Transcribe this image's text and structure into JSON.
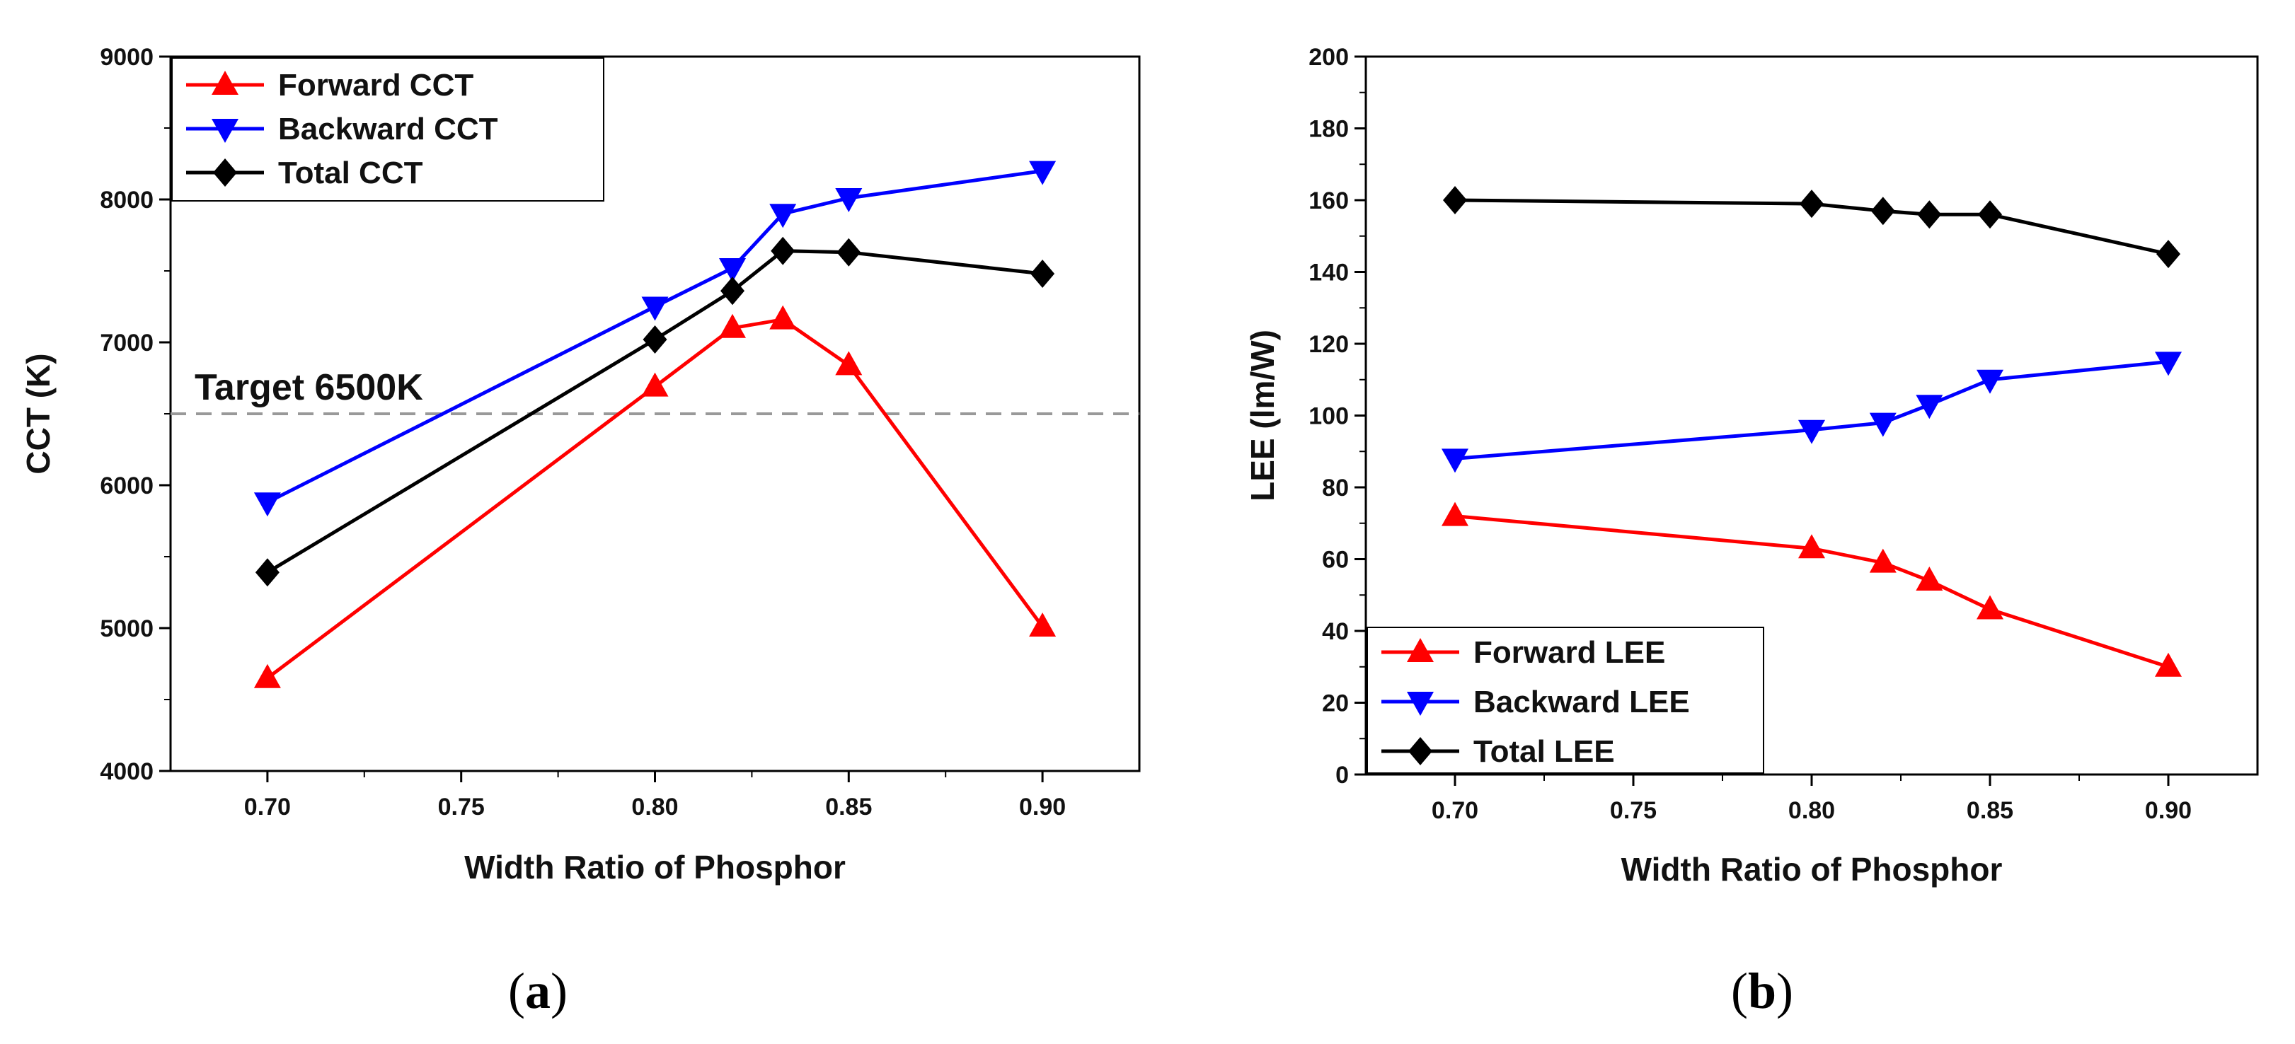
{
  "chart_data": [
    {
      "type": "line",
      "panel_label": "a",
      "xlabel": "Width Ratio of Phosphor",
      "ylabel": "CCT (K)",
      "xlim": [
        0.675,
        0.925
      ],
      "ylim": [
        4000,
        9000
      ],
      "xticks": [
        0.7,
        0.75,
        0.8,
        0.85,
        0.9
      ],
      "xtick_labels": [
        "0.70",
        "0.75",
        "0.80",
        "0.85",
        "0.90"
      ],
      "yticks": [
        4000,
        5000,
        6000,
        7000,
        8000,
        9000
      ],
      "ytick_labels": [
        "4000",
        "5000",
        "6000",
        "7000",
        "8000",
        "9000"
      ],
      "grid": false,
      "legend_position": "top-left",
      "series": [
        {
          "name": "Forward CCT",
          "color": "#ff0000",
          "marker": "triangle-up",
          "x": [
            0.7,
            0.8,
            0.82,
            0.833,
            0.85,
            0.9
          ],
          "y": [
            4650,
            6690,
            7100,
            7160,
            6840,
            5010
          ]
        },
        {
          "name": "Backward CCT",
          "color": "#0000ff",
          "marker": "triangle-down",
          "x": [
            0.7,
            0.8,
            0.82,
            0.833,
            0.85,
            0.9
          ],
          "y": [
            5880,
            7250,
            7520,
            7900,
            8010,
            8200
          ]
        },
        {
          "name": "Total CCT",
          "color": "#000000",
          "marker": "diamond",
          "x": [
            0.7,
            0.8,
            0.82,
            0.833,
            0.85,
            0.9
          ],
          "y": [
            5390,
            7020,
            7360,
            7640,
            7630,
            7480
          ]
        }
      ],
      "reference_line": {
        "y": 6500,
        "label": "Target 6500K",
        "color": "#999999",
        "style": "dashed"
      }
    },
    {
      "type": "line",
      "panel_label": "b",
      "xlabel": "Width Ratio of Phosphor",
      "ylabel": "LEE (lm/W)",
      "xlim": [
        0.675,
        0.925
      ],
      "ylim": [
        0,
        200
      ],
      "xticks": [
        0.7,
        0.75,
        0.8,
        0.85,
        0.9
      ],
      "xtick_labels": [
        "0.70",
        "0.75",
        "0.80",
        "0.85",
        "0.90"
      ],
      "yticks": [
        0,
        20,
        40,
        60,
        80,
        100,
        120,
        140,
        160,
        180,
        200
      ],
      "ytick_labels": [
        "0",
        "20",
        "40",
        "60",
        "80",
        "100",
        "120",
        "140",
        "160",
        "180",
        "200"
      ],
      "grid": false,
      "legend_position": "bottom-left",
      "series": [
        {
          "name": "Forward LEE",
          "color": "#ff0000",
          "marker": "triangle-up",
          "x": [
            0.7,
            0.8,
            0.82,
            0.833,
            0.85,
            0.9
          ],
          "y": [
            72,
            63,
            59,
            54,
            46,
            30
          ]
        },
        {
          "name": "Backward LEE",
          "color": "#0000ff",
          "marker": "triangle-down",
          "x": [
            0.7,
            0.8,
            0.82,
            0.833,
            0.85,
            0.9
          ],
          "y": [
            88,
            96,
            98,
            103,
            110,
            115
          ]
        },
        {
          "name": "Total LEE",
          "color": "#000000",
          "marker": "diamond",
          "x": [
            0.7,
            0.8,
            0.82,
            0.833,
            0.85,
            0.9
          ],
          "y": [
            160,
            159,
            157,
            156,
            156,
            145
          ]
        }
      ]
    }
  ]
}
